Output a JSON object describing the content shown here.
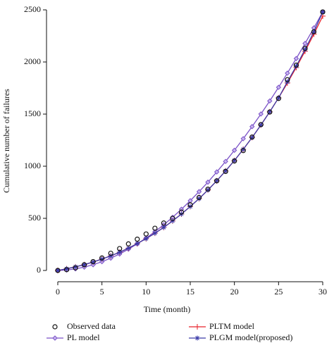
{
  "chart_data": {
    "type": "line",
    "x_label": "Time (month)",
    "y_label": "Cumulative number of failures",
    "xlim": [
      0,
      30
    ],
    "xticks": [
      0,
      5,
      10,
      15,
      20,
      25,
      30
    ],
    "ylim": [
      0,
      2500
    ],
    "yticks": [
      0,
      500,
      1000,
      1500,
      2000,
      2500
    ],
    "x": [
      0,
      1,
      2,
      3,
      4,
      5,
      6,
      7,
      8,
      9,
      10,
      11,
      12,
      13,
      14,
      15,
      16,
      17,
      18,
      19,
      20,
      21,
      22,
      23,
      24,
      25,
      26,
      27,
      28,
      29,
      30
    ],
    "series": [
      {
        "name": "Observed data",
        "color": "#111111",
        "marker": "circle",
        "line": false,
        "values": [
          0,
          8,
          25,
          55,
          85,
          120,
          165,
          210,
          255,
          300,
          350,
          405,
          455,
          500,
          560,
          630,
          700,
          780,
          860,
          950,
          1050,
          1150,
          1280,
          1400,
          1520,
          1650,
          1830,
          1970,
          2130,
          2290,
          2480
        ]
      },
      {
        "name": "PL model",
        "color": "#7b52c7",
        "marker": "diamond",
        "line": true,
        "values": [
          0,
          4,
          15,
          32,
          55,
          84,
          118,
          158,
          204,
          255,
          311,
          372,
          438,
          510,
          587,
          669,
          756,
          847,
          945,
          1046,
          1153,
          1264,
          1380,
          1501,
          1626,
          1757,
          1893,
          2033,
          2178,
          2327,
          2480
        ]
      },
      {
        "name": "PLTM model",
        "color": "#e8212a",
        "marker": "plus",
        "line": true,
        "values": [
          0,
          16,
          35,
          56,
          81,
          109,
          140,
          175,
          214,
          258,
          305,
          357,
          413,
          475,
          541,
          613,
          689,
          772,
          860,
          955,
          1055,
          1162,
          1275,
          1395,
          1522,
          1656,
          1798,
          1947,
          2103,
          2268,
          2440
        ]
      },
      {
        "name": "PLGM model(proposed)",
        "color": "#3a3aa8",
        "marker": "asterisk",
        "line": true,
        "values": [
          0,
          16,
          35,
          56,
          81,
          109,
          140,
          175,
          214,
          258,
          305,
          357,
          413,
          475,
          541,
          613,
          689,
          772,
          860,
          955,
          1055,
          1162,
          1275,
          1395,
          1522,
          1656,
          1810,
          1960,
          2120,
          2290,
          2480
        ]
      }
    ]
  }
}
